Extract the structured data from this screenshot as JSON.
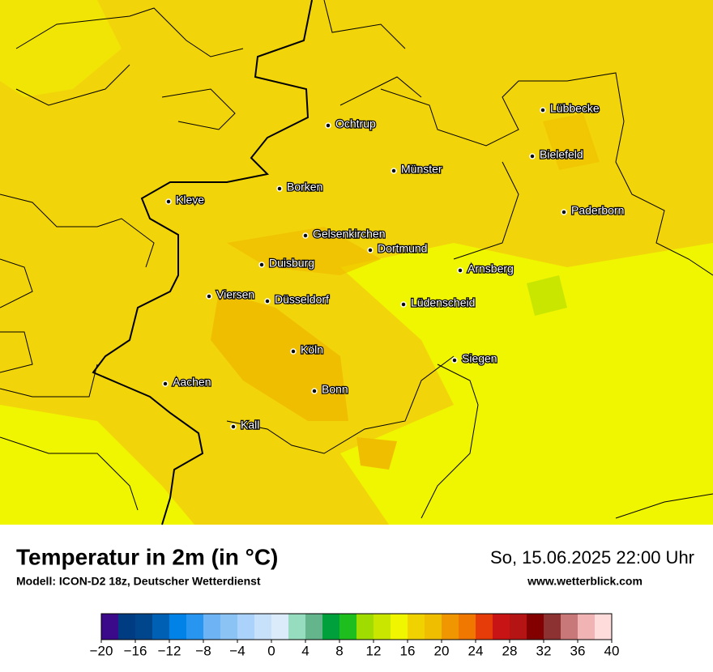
{
  "header": {
    "title": "Temperatur in 2m (in °C)",
    "subtitle": "Modell: ICON-D2 18z, Deutscher Wetterdienst",
    "datetime": "So, 15.06.2025 22:00 Uhr",
    "website": "www.wetterblick.com"
  },
  "cities": [
    "Lübbecke",
    "Ochtrup",
    "Bielefeld",
    "Münster",
    "Borken",
    "Kleve",
    "Paderborn",
    "Gelsenkirchen",
    "Dortmund",
    "Duisburg",
    "Arnsberg",
    "Viersen",
    "Düsseldorf",
    "Lüdenscheid",
    "Köln",
    "Siegen",
    "Aachen",
    "Bonn",
    "Kall"
  ],
  "colorbar": {
    "range": [
      -20,
      40
    ],
    "colors": [
      "#3a0a8a",
      "#003c82",
      "#00468c",
      "#0060b4",
      "#0082e6",
      "#2896f0",
      "#6eb4f5",
      "#8cc3f5",
      "#aad2fa",
      "#c8e1fa",
      "#dcebfa",
      "#96dcbe",
      "#64b48c",
      "#00a03c",
      "#1ebe1e",
      "#a0dc00",
      "#c8e600",
      "#f0f500",
      "#f0d200",
      "#f0be00",
      "#f09600",
      "#f07800",
      "#e63c0a",
      "#c81414",
      "#b41414",
      "#820000",
      "#8c3232",
      "#c87878",
      "#f0b4b4",
      "#ffdcdc"
    ],
    "ticks": [
      {
        "value": -20,
        "label": "−20"
      },
      {
        "value": -16,
        "label": "−16"
      },
      {
        "value": -12,
        "label": "−12"
      },
      {
        "value": -8,
        "label": "−8"
      },
      {
        "value": -4,
        "label": "−4"
      },
      0,
      4,
      8,
      12,
      16,
      20,
      24,
      28,
      32,
      36,
      40
    ]
  }
}
